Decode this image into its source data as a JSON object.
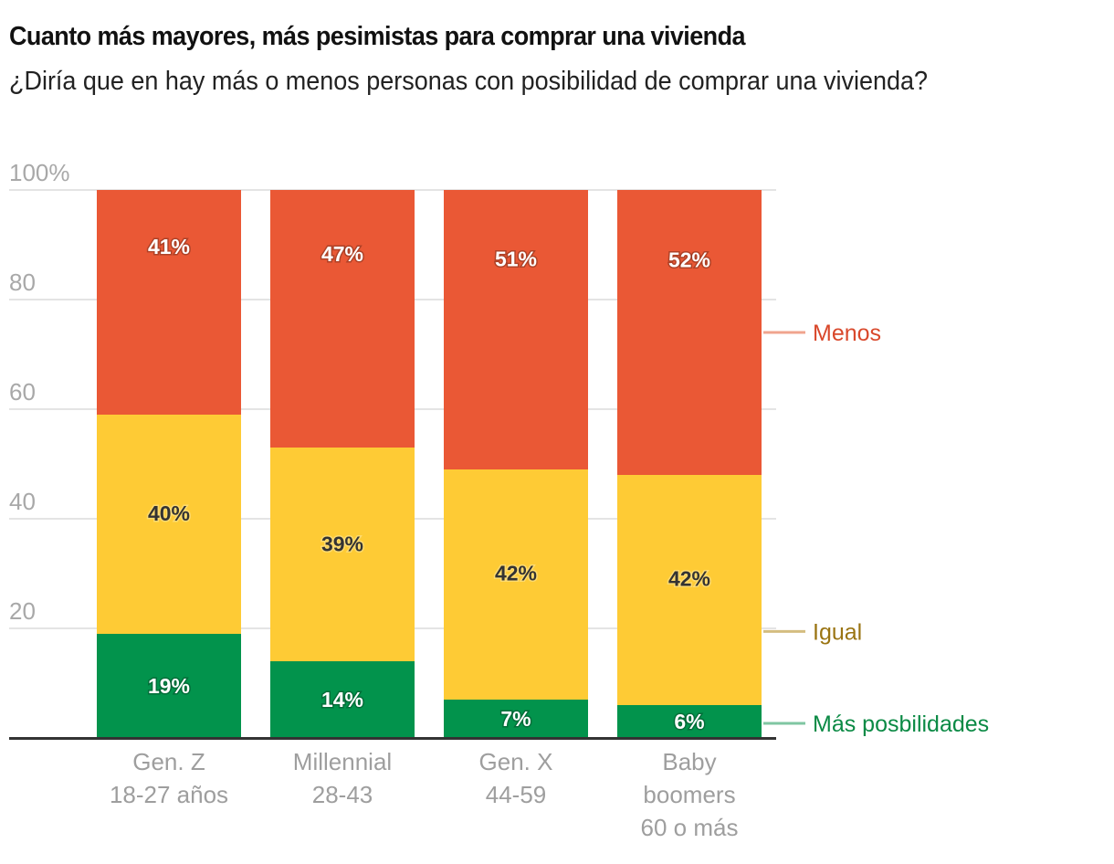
{
  "header": {
    "title": "Cuanto más mayores, más pesimistas para comprar una vivienda",
    "subtitle": "¿Diría que en hay más o menos personas con posibilidad de comprar una vivienda?"
  },
  "colors": {
    "menos": "#ea5835",
    "igual": "#fecb35",
    "mas": "#02934c",
    "menos_legend_text": "#d9482b",
    "igual_legend_text": "#9a7412",
    "mas_legend_text": "#0b8a45",
    "menos_legend_line": "#f0a48e",
    "igual_legend_line": "#d4bd80",
    "mas_legend_line": "#7fc6a2",
    "grid": "#e4e4e4",
    "axis": "#333333",
    "label_dark": "#333333",
    "label_light": "#ffffff"
  },
  "chart_data": {
    "type": "bar",
    "stacked": true,
    "title": "Cuanto más mayores, más pesimistas para comprar una vivienda",
    "subtitle": "¿Diría que en hay más o menos personas con posibilidad de comprar una vivienda?",
    "xlabel": "",
    "ylabel": "",
    "ylim": [
      0,
      100
    ],
    "yticks": [
      0,
      20,
      40,
      60,
      80,
      100
    ],
    "ytick_labels": [
      "",
      "20",
      "40",
      "60",
      "80",
      "100%"
    ],
    "grid": true,
    "legend": "right (direct labels)",
    "categories": [
      [
        "Gen. Z",
        "18-27 años"
      ],
      [
        "Millennial",
        "28-43"
      ],
      [
        "Gen. X",
        "44-59"
      ],
      [
        "Baby",
        "boomers",
        "60 o más"
      ]
    ],
    "series": [
      {
        "name": "Más posbilidades",
        "key": "mas",
        "values": [
          19,
          14,
          7,
          6
        ],
        "labels": [
          "19%",
          "14%",
          "7%",
          "6%"
        ]
      },
      {
        "name": "Igual",
        "key": "igual",
        "values": [
          40,
          39,
          42,
          42
        ],
        "labels": [
          "40%",
          "39%",
          "42%",
          "42%"
        ]
      },
      {
        "name": "Menos",
        "key": "menos",
        "values": [
          41,
          47,
          51,
          52
        ],
        "labels": [
          "41%",
          "47%",
          "51%",
          "52%"
        ]
      }
    ]
  }
}
